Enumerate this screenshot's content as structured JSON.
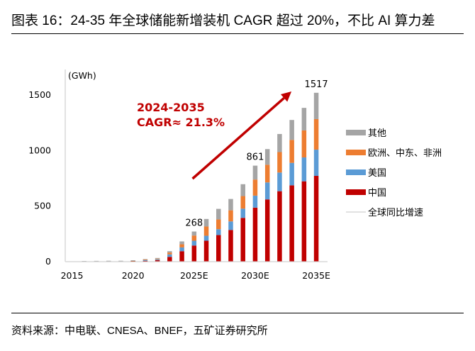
{
  "header": {
    "title": "图表 16：24-35 年全球储能新增装机 CAGR 超过 20%，不比 AI 算力差"
  },
  "footer": {
    "source": "资料来源：中电联、CNESA、BNEF，五矿证券研究所"
  },
  "chart_data": {
    "type": "bar",
    "stacked": true,
    "title": "24-35 年全球储能新增装机 CAGR 超过 20%，不比 AI 算力差",
    "ylabel": "(GWh)",
    "xlabel": "",
    "ylim": [
      0,
      1500
    ],
    "yticks": [
      "0",
      "500",
      "1000",
      "1500"
    ],
    "yticks_values": [
      0,
      500,
      1000,
      1500
    ],
    "grid": false,
    "legend_position": "right",
    "categories": [
      "2015",
      "2016",
      "2017",
      "2018",
      "2019",
      "2020",
      "2021",
      "2022",
      "2023",
      "2024",
      "2025E",
      "2026E",
      "2027E",
      "2028E",
      "2029E",
      "2030E",
      "2031E",
      "2032E",
      "2033E",
      "2034E",
      "2035E"
    ],
    "xtick_labels": [
      {
        "category": "2015",
        "label": "2015"
      },
      {
        "category": "2020",
        "label": "2020"
      },
      {
        "category": "2025E",
        "label": "2025E"
      },
      {
        "category": "2030E",
        "label": "2030E"
      },
      {
        "category": "2035E",
        "label": "2035E"
      }
    ],
    "series": [
      {
        "name": "中国",
        "color": "#c00000",
        "values": [
          0,
          0,
          0,
          0,
          0,
          1,
          3,
          10,
          40,
          91,
          142,
          185,
          236,
          282,
          391,
          483,
          557,
          631,
          684,
          720,
          769
        ]
      },
      {
        "name": "美国",
        "color": "#5b9bd5",
        "values": [
          0,
          0,
          0,
          0,
          0,
          1,
          8,
          8,
          22,
          34,
          43,
          45,
          53,
          77,
          83,
          108,
          153,
          168,
          202,
          215,
          236
        ]
      },
      {
        "name": "欧洲、中东、非洲",
        "color": "#ed7d31",
        "values": [
          0,
          0,
          0,
          0,
          0,
          1,
          5,
          6,
          17,
          28,
          47,
          83,
          88,
          100,
          113,
          145,
          159,
          184,
          207,
          243,
          275
        ]
      },
      {
        "name": "其他",
        "color": "#a5a5a5",
        "values": [
          0,
          1,
          4,
          5,
          5,
          6,
          4,
          6,
          12,
          26,
          36,
          68,
          95,
          102,
          107,
          125,
          141,
          163,
          179,
          203,
          237
        ]
      }
    ],
    "line_series": [
      {
        "name": "全球同比增速",
        "color": "#d9d9d9",
        "values": []
      }
    ],
    "data_labels": [
      {
        "category": "2025E",
        "text": "268"
      },
      {
        "category": "2030E",
        "text": "861"
      },
      {
        "category": "2035E",
        "text": "1517"
      }
    ],
    "annotation": {
      "lines": [
        "2024-2035",
        "CAGR≈ 21.3%"
      ],
      "color": "#c00000",
      "arrow": {
        "from_category": "2024",
        "to_category": "2035E"
      }
    }
  }
}
